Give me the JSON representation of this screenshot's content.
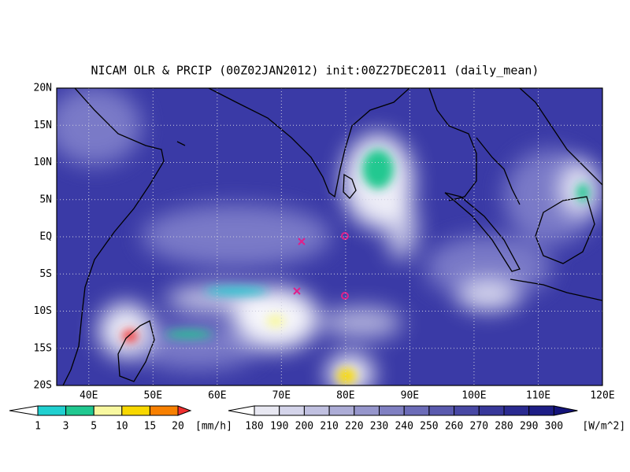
{
  "title": "NICAM OLR & PRCIP (00Z02JAN2012) init:00Z27DEC2011 (daily_mean)",
  "lat_labels": [
    "20N",
    "15N",
    "10N",
    "5N",
    "EQ",
    "5S",
    "10S",
    "15S",
    "20S"
  ],
  "lon_labels": [
    "40E",
    "50E",
    "60E",
    "70E",
    "80E",
    "90E",
    "100E",
    "110E",
    "120E"
  ],
  "precip_colorbar": {
    "labels": [
      "1",
      "3",
      "5",
      "10",
      "15",
      "20"
    ],
    "unit": "[mm/h]",
    "colors": [
      "#ffffff",
      "#20d0d0",
      "#20c890",
      "#f8f8a0",
      "#f8d800",
      "#f88000",
      "#f03030"
    ]
  },
  "olr_colorbar": {
    "labels": [
      "180",
      "190",
      "200",
      "210",
      "220",
      "230",
      "240",
      "250",
      "260",
      "270",
      "280",
      "290",
      "300"
    ],
    "unit": "[W/m^2]",
    "colors": [
      "#ffffff",
      "#e8e8f2",
      "#d4d4ea",
      "#c0c0e0",
      "#acacd6",
      "#9696cc",
      "#8080c2",
      "#6c6cb8",
      "#5a5aae",
      "#4848a4",
      "#38389a",
      "#2a2a90",
      "#1e1e86",
      "#14147a"
    ]
  }
}
